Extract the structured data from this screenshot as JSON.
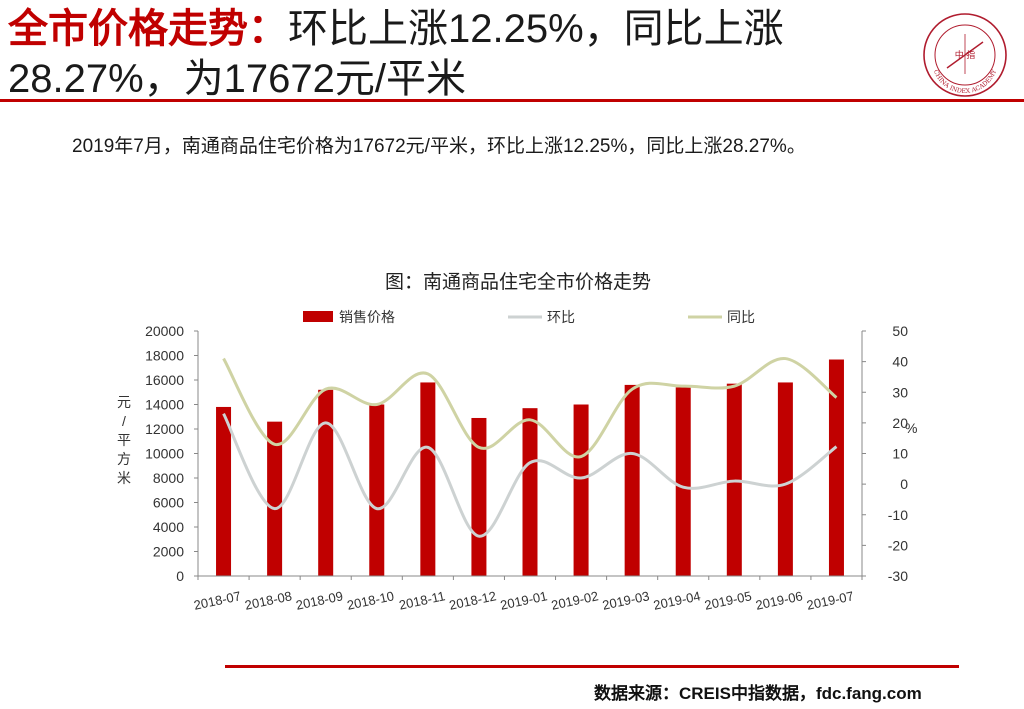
{
  "slide": {
    "title_highlight": "全市价格走势：",
    "title_rest": "环比上涨12.25%，同比上涨28.27%，为17672元/平米",
    "summary": "2019年7月，南通商品住宅价格为17672元/平米，环比上涨12.25%，同比上涨28.27%。",
    "source": "数据来源：CREIS中指数据，fdc.fang.com",
    "logo_text": "CHINA INDEX ACADEMY",
    "logo_inner": "中 指"
  },
  "colors": {
    "accent": "#c00000",
    "bar": "#c00000",
    "mom_line": "#cdd2d2",
    "yoy_line": "#cfd3a4"
  },
  "chart_data": {
    "type": "bar",
    "title": "图：南通商品住宅全市价格走势",
    "categories": [
      "2018-07",
      "2018-08",
      "2018-09",
      "2018-10",
      "2018-11",
      "2018-12",
      "2019-01",
      "2019-02",
      "2019-03",
      "2019-04",
      "2019-05",
      "2019-06",
      "2019-07"
    ],
    "series": [
      {
        "name": "销售价格",
        "type": "bar",
        "axis": "left",
        "values": [
          13800,
          12600,
          15200,
          14000,
          15800,
          12900,
          13700,
          14000,
          15600,
          15400,
          15700,
          15800,
          17672
        ]
      },
      {
        "name": "环比",
        "type": "line",
        "axis": "right",
        "values": [
          23,
          -8,
          20,
          -8,
          12,
          -17,
          7,
          2,
          10,
          -1,
          1,
          0,
          12.25
        ]
      },
      {
        "name": "同比",
        "type": "line",
        "axis": "right",
        "values": [
          41,
          13,
          31,
          26,
          36,
          12,
          21,
          9,
          31,
          32,
          32,
          41,
          28.27
        ]
      }
    ],
    "ylabel": "元/平方米",
    "ylabel_right": "%",
    "ylim": [
      0,
      20000
    ],
    "ylim_right": [
      -30,
      50
    ],
    "yticks": [
      "0",
      "2000",
      "4000",
      "6000",
      "8000",
      "10000",
      "12000",
      "14000",
      "16000",
      "18000",
      "20000"
    ],
    "yticks_right": [
      "-30",
      "-20",
      "-10",
      "0",
      "10",
      "20",
      "30",
      "40",
      "50"
    ],
    "grid": false,
    "legend": "top"
  }
}
